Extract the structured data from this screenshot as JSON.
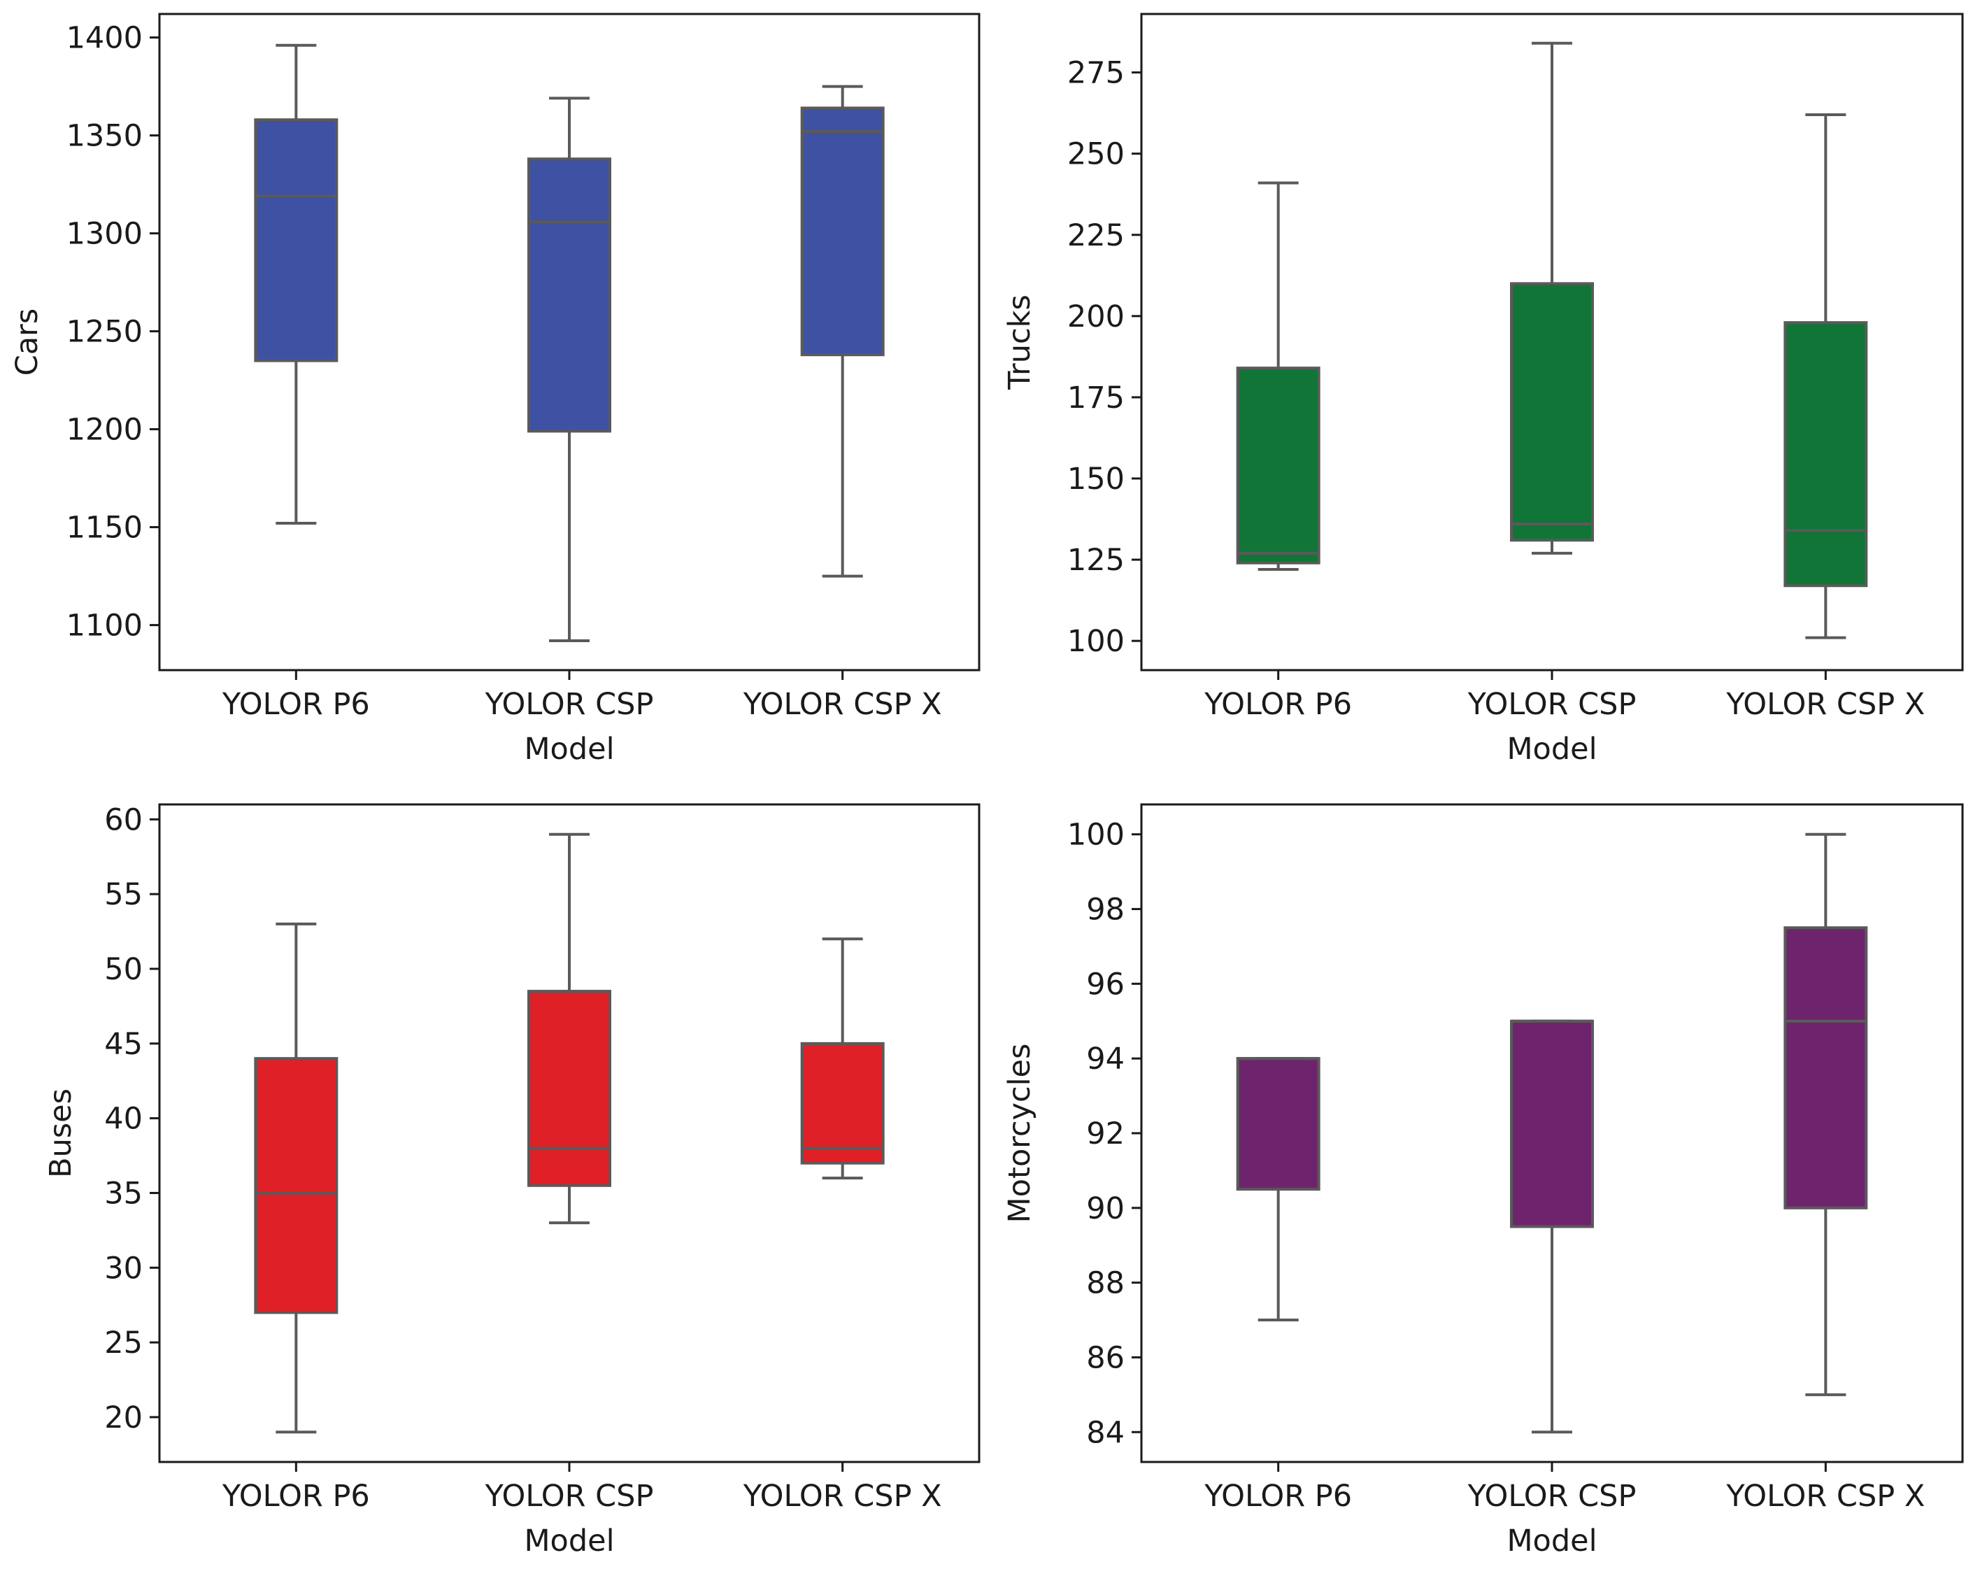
{
  "chart_data": [
    {
      "type": "box",
      "xlabel": "Model",
      "ylabel": "Cars",
      "categories": [
        "YOLOR P6",
        "YOLOR CSP",
        "YOLOR CSP X"
      ],
      "ylim": [
        1077,
        1412
      ],
      "yticks": [
        1100,
        1150,
        1200,
        1250,
        1300,
        1350,
        1400
      ],
      "color": "#3f51a3",
      "boxes": [
        {
          "whisker_low": 1152,
          "q1": 1235,
          "median": 1319,
          "q3": 1358,
          "whisker_high": 1396
        },
        {
          "whisker_low": 1092,
          "q1": 1199,
          "median": 1306,
          "q3": 1338,
          "whisker_high": 1369
        },
        {
          "whisker_low": 1125,
          "q1": 1238,
          "median": 1352,
          "q3": 1364,
          "whisker_high": 1375
        }
      ]
    },
    {
      "type": "box",
      "xlabel": "Model",
      "ylabel": "Trucks",
      "categories": [
        "YOLOR P6",
        "YOLOR CSP",
        "YOLOR CSP X"
      ],
      "ylim": [
        91,
        293
      ],
      "yticks": [
        100,
        125,
        150,
        175,
        200,
        225,
        250,
        275
      ],
      "color": "#117537",
      "boxes": [
        {
          "whisker_low": 122,
          "q1": 124,
          "median": 127,
          "q3": 184,
          "whisker_high": 241
        },
        {
          "whisker_low": 127,
          "q1": 131,
          "median": 136,
          "q3": 210,
          "whisker_high": 284
        },
        {
          "whisker_low": 101,
          "q1": 117,
          "median": 134,
          "q3": 198,
          "whisker_high": 262
        }
      ]
    },
    {
      "type": "box",
      "xlabel": "Model",
      "ylabel": "Buses",
      "categories": [
        "YOLOR P6",
        "YOLOR CSP",
        "YOLOR CSP X"
      ],
      "ylim": [
        17,
        61
      ],
      "yticks": [
        20,
        25,
        30,
        35,
        40,
        45,
        50,
        55,
        60
      ],
      "color": "#e02027",
      "boxes": [
        {
          "whisker_low": 19,
          "q1": 27,
          "median": 35,
          "q3": 44,
          "whisker_high": 53
        },
        {
          "whisker_low": 33,
          "q1": 35.5,
          "median": 38,
          "q3": 48.5,
          "whisker_high": 59
        },
        {
          "whisker_low": 36,
          "q1": 37,
          "median": 38,
          "q3": 45,
          "whisker_high": 52
        }
      ]
    },
    {
      "type": "box",
      "xlabel": "Model",
      "ylabel": "Motorcycles",
      "categories": [
        "YOLOR P6",
        "YOLOR CSP",
        "YOLOR CSP X"
      ],
      "ylim": [
        83.2,
        100.8
      ],
      "yticks": [
        84,
        86,
        88,
        90,
        92,
        94,
        96,
        98,
        100
      ],
      "color": "#6e246d",
      "boxes": [
        {
          "whisker_low": 87,
          "q1": 90.5,
          "median": 94,
          "q3": 94,
          "whisker_high": 94
        },
        {
          "whisker_low": 84,
          "q1": 89.5,
          "median": 95,
          "q3": 95,
          "whisker_high": 95
        },
        {
          "whisker_low": 85,
          "q1": 90,
          "median": 95,
          "q3": 97.5,
          "whisker_high": 100
        }
      ]
    }
  ]
}
